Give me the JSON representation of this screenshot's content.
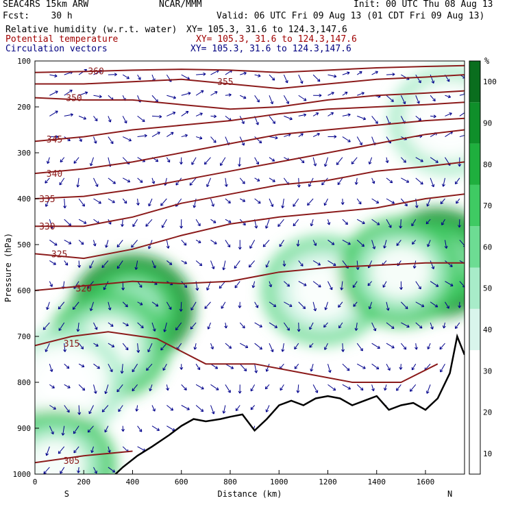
{
  "header": {
    "model": "SEAC4RS 15km ARW",
    "center": "NCAR/MMM",
    "init": "Init: 00 UTC Thu 08 Aug 13",
    "fcst": "Fcst:    30 h",
    "valid": "Valid: 06 UTC Fri 09 Aug 13 (01 CDT Fri 09 Aug 13)",
    "field1": "Relative humidity (w.r.t. water)",
    "field2": "Potential temperature",
    "field3": "Circulation vectors",
    "xy": "XY= 105.3, 31.6 to 124.3,147.6"
  },
  "colors": {
    "theta": "#8b1a1a",
    "vectors": "#00008b",
    "terrain": "#000000",
    "rh_levels": [
      "#ffffff",
      "#ffffff",
      "#ffffff",
      "#d9f5ec",
      "#a8ecc9",
      "#6ddc93",
      "#3fca63",
      "#1faf3e",
      "#0f8f2a",
      "#0a6e1e"
    ]
  },
  "legend": {
    "unit": "%",
    "ticks": [
      "10",
      "20",
      "30",
      "40",
      "50",
      "60",
      "70",
      "80",
      "90",
      "100"
    ]
  },
  "chart_data": {
    "type": "cross-section",
    "xlabel": "Distance (km)",
    "ylabel": "Pressure (hPa)",
    "xlim": [
      0,
      1760
    ],
    "ylim": [
      1000,
      100
    ],
    "x_ticks": [
      0,
      200,
      400,
      600,
      800,
      1000,
      1200,
      1400,
      1600
    ],
    "y_ticks": [
      100,
      200,
      300,
      400,
      500,
      600,
      700,
      800,
      900,
      1000
    ],
    "end_labels": [
      "S",
      "N"
    ],
    "rh_blobs": [
      {
        "x": 400,
        "p": 640,
        "level": 90
      },
      {
        "x": 300,
        "p": 720,
        "level": 70
      },
      {
        "x": 120,
        "p": 800,
        "level": 50
      },
      {
        "x": 80,
        "p": 980,
        "level": 70
      },
      {
        "x": 1180,
        "p": 600,
        "level": 60
      },
      {
        "x": 1650,
        "p": 540,
        "level": 95
      },
      {
        "x": 1500,
        "p": 560,
        "level": 70
      },
      {
        "x": 1700,
        "p": 230,
        "level": 50
      }
    ],
    "theta_lines": [
      {
        "label": "305",
        "x": [
          0,
          200,
          300,
          400
        ],
        "p": [
          975,
          960,
          955,
          950
        ],
        "label_x": 150,
        "label_p": 970
      },
      {
        "label": "315",
        "x": [
          0,
          150,
          300,
          500,
          700,
          900,
          1100,
          1300,
          1500,
          1650
        ],
        "p": [
          720,
          700,
          690,
          705,
          760,
          760,
          780,
          800,
          800,
          760
        ],
        "label_x": 150,
        "label_p": 715
      },
      {
        "label": "320",
        "x": [
          0,
          200,
          400,
          600,
          800,
          1000,
          1200,
          1400,
          1600,
          1760
        ],
        "p": [
          600,
          590,
          580,
          585,
          580,
          560,
          550,
          545,
          540,
          540
        ],
        "label_x": 200,
        "label_p": 595
      },
      {
        "label": "325",
        "x": [
          0,
          200,
          400,
          600,
          800,
          1000,
          1200,
          1400,
          1600,
          1760
        ],
        "p": [
          520,
          530,
          510,
          480,
          455,
          440,
          430,
          420,
          400,
          390
        ],
        "label_x": 100,
        "label_p": 520
      },
      {
        "label": "330",
        "x": [
          0,
          200,
          400,
          600,
          800,
          1000,
          1200,
          1400,
          1600,
          1760
        ],
        "p": [
          460,
          460,
          440,
          410,
          390,
          370,
          360,
          340,
          330,
          320
        ],
        "label_x": 50,
        "label_p": 460
      },
      {
        "label": "335",
        "x": [
          0,
          200,
          400,
          600,
          800,
          1000,
          1200,
          1400,
          1600,
          1760
        ],
        "p": [
          400,
          395,
          380,
          360,
          340,
          320,
          300,
          280,
          260,
          250
        ],
        "label_x": 50,
        "label_p": 400
      },
      {
        "label": "340",
        "x": [
          0,
          200,
          400,
          600,
          800,
          1000,
          1200,
          1400,
          1600,
          1760
        ],
        "p": [
          345,
          335,
          320,
          300,
          280,
          260,
          250,
          240,
          230,
          225
        ],
        "label_x": 80,
        "label_p": 345
      },
      {
        "label": "345",
        "x": [
          0,
          200,
          400,
          600,
          800,
          1000,
          1200,
          1400,
          1600,
          1760
        ],
        "p": [
          275,
          265,
          250,
          240,
          230,
          215,
          205,
          200,
          195,
          190
        ],
        "label_x": 80,
        "label_p": 270
      },
      {
        "label": "350",
        "x": [
          0,
          200,
          400,
          600,
          800,
          1000,
          1200,
          1400,
          1600,
          1760
        ],
        "p": [
          180,
          185,
          185,
          195,
          205,
          200,
          185,
          175,
          170,
          165
        ],
        "label_x": 160,
        "label_p": 180
      },
      {
        "label": "355",
        "x": [
          0,
          200,
          400,
          600,
          800,
          1000,
          1200,
          1400,
          1600,
          1760
        ],
        "p": [
          150,
          150,
          145,
          140,
          150,
          160,
          150,
          140,
          135,
          130
        ],
        "label_x": 780,
        "label_p": 145
      },
      {
        "label": "360",
        "x": [
          0,
          200,
          400,
          600,
          800,
          1000,
          1200,
          1400,
          1600,
          1760
        ],
        "p": [
          125,
          123,
          120,
          118,
          120,
          125,
          120,
          115,
          112,
          110
        ],
        "label_x": 250,
        "label_p": 122
      }
    ],
    "terrain": {
      "x": [
        0,
        100,
        200,
        320,
        360,
        420,
        480,
        550,
        600,
        650,
        700,
        760,
        800,
        850,
        900,
        950,
        1000,
        1050,
        1100,
        1150,
        1200,
        1250,
        1300,
        1350,
        1400,
        1450,
        1500,
        1550,
        1600,
        1650,
        1700,
        1730,
        1760
      ],
      "p": [
        1008,
        1008,
        1008,
        1005,
        985,
        960,
        940,
        915,
        895,
        880,
        885,
        880,
        875,
        870,
        905,
        880,
        850,
        840,
        850,
        835,
        830,
        835,
        850,
        840,
        830,
        860,
        850,
        845,
        860,
        835,
        780,
        700,
        740
      ]
    }
  }
}
